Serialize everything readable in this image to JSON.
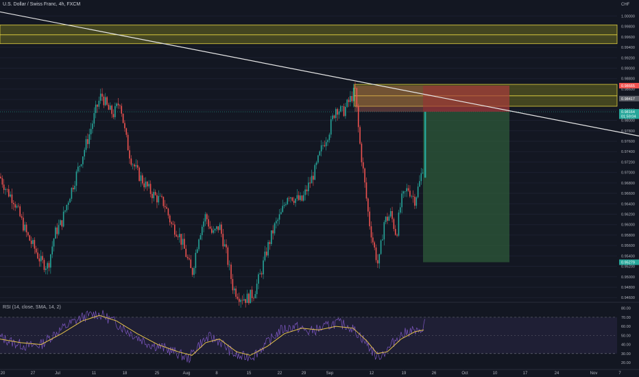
{
  "header": {
    "symbol_line": "U.S. Dollar / Swiss Franc, 4h, FXCM"
  },
  "rsi_header": "RSI (14, close, SMA, 14, 2)",
  "colors": {
    "background": "#131722",
    "up_candle": "#26a69a",
    "down_candle": "#ef5350",
    "zone_fill": "#6b6b1f",
    "zone_border": "#e0d040",
    "trendline": "#e8e8e8",
    "stop_zone": "#a83c3c",
    "target_zone": "#2e5a3a",
    "rsi_line": "#7e57c2",
    "rsi_ma": "#e6c34a"
  },
  "chart_data": [
    {
      "type": "candlestick",
      "currency_label": "CHF",
      "y_ticks": [
        "1.00000",
        "0.99800",
        "0.99600",
        "0.99400",
        "0.99200",
        "0.99000",
        "0.98800",
        "0.98600",
        "0.98400",
        "0.98200",
        "0.98000",
        "0.97800",
        "0.97600",
        "0.97400",
        "0.97200",
        "0.97000",
        "0.96800",
        "0.96600",
        "0.96400",
        "0.96200",
        "0.96000",
        "0.95800",
        "0.95600",
        "0.95400",
        "0.95200",
        "0.95000",
        "0.94800",
        "0.94600"
      ],
      "x_ticks": [
        "20",
        "27",
        "Jul",
        "11",
        "18",
        "25",
        "Aug",
        "8",
        "15",
        "22",
        "29",
        "Sep",
        "12",
        "19",
        "26",
        "Oct",
        "10",
        "17",
        "24",
        "Nov",
        "7"
      ],
      "ylim": [
        0.9455,
        1.0015
      ],
      "price_path": [
        [
          0,
          0.9692
        ],
        [
          10,
          0.9665
        ],
        [
          20,
          0.9648
        ],
        [
          30,
          0.9612
        ],
        [
          40,
          0.9578
        ],
        [
          50,
          0.9555
        ],
        [
          60,
          0.9528
        ],
        [
          70,
          0.952
        ],
        [
          80,
          0.9583
        ],
        [
          90,
          0.9605
        ],
        [
          100,
          0.965
        ],
        [
          110,
          0.969
        ],
        [
          120,
          0.9732
        ],
        [
          130,
          0.9772
        ],
        [
          140,
          0.982
        ],
        [
          148,
          0.985
        ],
        [
          158,
          0.982
        ],
        [
          166,
          0.9812
        ],
        [
          175,
          0.9838
        ],
        [
          183,
          0.977
        ],
        [
          190,
          0.973
        ],
        [
          200,
          0.97
        ],
        [
          210,
          0.968
        ],
        [
          220,
          0.9662
        ],
        [
          230,
          0.965
        ],
        [
          240,
          0.964
        ],
        [
          250,
          0.96
        ],
        [
          260,
          0.9585
        ],
        [
          270,
          0.9548
        ],
        [
          280,
          0.9505
        ],
        [
          290,
          0.958
        ],
        [
          300,
          0.9618
        ],
        [
          310,
          0.958
        ],
        [
          320,
          0.9598
        ],
        [
          330,
          0.9545
        ],
        [
          340,
          0.9478
        ],
        [
          350,
          0.9462
        ],
        [
          360,
          0.9458
        ],
        [
          370,
          0.9468
        ],
        [
          380,
          0.9505
        ],
        [
          390,
          0.9555
        ],
        [
          400,
          0.9595
        ],
        [
          410,
          0.962
        ],
        [
          420,
          0.966
        ],
        [
          430,
          0.965
        ],
        [
          440,
          0.9645
        ],
        [
          450,
          0.9675
        ],
        [
          460,
          0.9705
        ],
        [
          470,
          0.975
        ],
        [
          480,
          0.978
        ],
        [
          490,
          0.9825
        ],
        [
          500,
          0.9815
        ],
        [
          510,
          0.9838
        ],
        [
          518,
          0.9858
        ],
        [
          524,
          0.9765
        ],
        [
          530,
          0.97
        ],
        [
          538,
          0.961
        ],
        [
          545,
          0.956
        ],
        [
          552,
          0.952
        ],
        [
          560,
          0.9605
        ],
        [
          570,
          0.962
        ],
        [
          578,
          0.958
        ],
        [
          585,
          0.9645
        ],
        [
          595,
          0.967
        ],
        [
          605,
          0.9648
        ],
        [
          612,
          0.968
        ],
        [
          618,
          0.972
        ],
        [
          621,
          0.9816
        ]
      ],
      "zones": [
        {
          "label": "resistance_upper",
          "top": 0.9983,
          "bottom": 0.9964
        },
        {
          "label": "resistance_mid",
          "top": 0.9964,
          "bottom": 0.9947
        },
        {
          "label": "entry_zone_upper",
          "top": 0.9869,
          "bottom": 0.9847
        },
        {
          "label": "entry_zone_lower",
          "top": 0.9847,
          "bottom": 0.9827
        }
      ],
      "trendline": {
        "start": [
          0,
          1.0008
        ],
        "end": [
          932,
          0.977
        ]
      },
      "position": {
        "type": "short",
        "entry": 0.98164,
        "stop": 0.98665,
        "target": 0.95279,
        "x_start": 617,
        "x_end": 743
      },
      "price_labels": [
        {
          "text": "0.98665",
          "price": 0.98665,
          "color": "#ef5350"
        },
        {
          "text": "0.98417",
          "price": 0.98417,
          "color": "#5d6068"
        },
        {
          "text": "0.98164",
          "price": 0.98164,
          "color": "#26a69a"
        },
        {
          "text": "01:59:04",
          "price": 0.9808,
          "color": "#26a69a"
        },
        {
          "text": "0.95279",
          "price": 0.95279,
          "color": "#26a69a"
        }
      ]
    },
    {
      "type": "line",
      "name": "RSI",
      "y_ticks": [
        "80.00",
        "70.00",
        "60.00",
        "50.00",
        "40.00",
        "30.00",
        "20.00"
      ],
      "ylim": [
        17,
        82
      ],
      "bands": {
        "upper": 70,
        "lower": 30
      },
      "rsi_path": [
        [
          0,
          48
        ],
        [
          20,
          42
        ],
        [
          40,
          38
        ],
        [
          60,
          40
        ],
        [
          80,
          52
        ],
        [
          100,
          62
        ],
        [
          120,
          70
        ],
        [
          140,
          74
        ],
        [
          150,
          72
        ],
        [
          165,
          66
        ],
        [
          180,
          58
        ],
        [
          200,
          48
        ],
        [
          220,
          40
        ],
        [
          240,
          36
        ],
        [
          260,
          30
        ],
        [
          275,
          24
        ],
        [
          290,
          40
        ],
        [
          305,
          48
        ],
        [
          320,
          44
        ],
        [
          340,
          30
        ],
        [
          350,
          26
        ],
        [
          370,
          28
        ],
        [
          390,
          42
        ],
        [
          410,
          56
        ],
        [
          430,
          60
        ],
        [
          450,
          54
        ],
        [
          470,
          58
        ],
        [
          490,
          64
        ],
        [
          510,
          60
        ],
        [
          525,
          50
        ],
        [
          540,
          36
        ],
        [
          550,
          26
        ],
        [
          565,
          34
        ],
        [
          580,
          48
        ],
        [
          600,
          56
        ],
        [
          612,
          52
        ],
        [
          620,
          66
        ]
      ],
      "ma_path": [
        [
          0,
          46
        ],
        [
          30,
          42
        ],
        [
          60,
          40
        ],
        [
          90,
          52
        ],
        [
          120,
          66
        ],
        [
          145,
          72
        ],
        [
          170,
          66
        ],
        [
          200,
          52
        ],
        [
          230,
          40
        ],
        [
          260,
          32
        ],
        [
          280,
          28
        ],
        [
          300,
          42
        ],
        [
          320,
          46
        ],
        [
          345,
          32
        ],
        [
          365,
          28
        ],
        [
          390,
          38
        ],
        [
          415,
          52
        ],
        [
          440,
          58
        ],
        [
          465,
          56
        ],
        [
          490,
          60
        ],
        [
          515,
          58
        ],
        [
          535,
          44
        ],
        [
          550,
          30
        ],
        [
          565,
          32
        ],
        [
          585,
          46
        ],
        [
          605,
          54
        ],
        [
          618,
          56
        ]
      ]
    }
  ]
}
